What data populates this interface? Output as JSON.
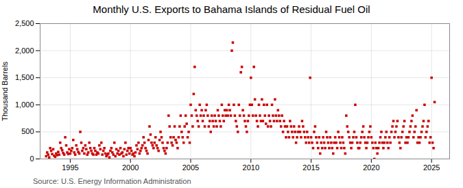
{
  "chart_data": {
    "type": "scatter",
    "title": "Monthly U.S. Exports to Bahama Islands of Residual Fuel Oil",
    "y_label": "Thousand Barrels",
    "annotations": [
      "Source: U.S. Energy Information Administration"
    ],
    "color": "#cc0000",
    "marker": "square",
    "grid": true,
    "xlim": [
      1992.5,
      2026.5
    ],
    "ylim": [
      0,
      2500
    ],
    "xticks": [
      1995,
      2000,
      2005,
      2010,
      2015,
      2020,
      2025
    ],
    "yticks": [
      0,
      500,
      {
        "value": 1000,
        "label": "1,000"
      },
      {
        "value": 1500,
        "label": "1,500"
      },
      {
        "value": 2000,
        "label": "2,000"
      },
      {
        "value": 2500,
        "label": "2,500"
      }
    ],
    "x": [
      1993.0,
      1993.083,
      1993.167,
      1993.25,
      1993.333,
      1993.417,
      1993.5,
      1993.583,
      1993.667,
      1993.75,
      1993.833,
      1993.917,
      1994.0,
      1994.083,
      1994.167,
      1994.25,
      1994.333,
      1994.417,
      1994.5,
      1994.583,
      1994.667,
      1994.75,
      1994.833,
      1994.917,
      1995.0,
      1995.083,
      1995.167,
      1995.25,
      1995.333,
      1995.417,
      1995.5,
      1995.583,
      1995.667,
      1995.75,
      1995.833,
      1995.917,
      1996.0,
      1996.083,
      1996.167,
      1996.25,
      1996.333,
      1996.417,
      1996.5,
      1996.583,
      1996.667,
      1996.75,
      1996.833,
      1996.917,
      1997.0,
      1997.083,
      1997.167,
      1997.25,
      1997.333,
      1997.417,
      1997.5,
      1997.583,
      1997.667,
      1997.75,
      1997.833,
      1997.917,
      1998.0,
      1998.083,
      1998.167,
      1998.25,
      1998.333,
      1998.417,
      1998.5,
      1998.583,
      1998.667,
      1998.75,
      1998.833,
      1998.917,
      1999.0,
      1999.083,
      1999.167,
      1999.25,
      1999.333,
      1999.417,
      1999.5,
      1999.583,
      1999.667,
      1999.75,
      1999.833,
      1999.917,
      2000.0,
      2000.083,
      2000.167,
      2000.25,
      2000.333,
      2000.417,
      2000.5,
      2000.583,
      2000.667,
      2000.75,
      2000.833,
      2000.917,
      2001.0,
      2001.083,
      2001.167,
      2001.25,
      2001.333,
      2001.417,
      2001.5,
      2001.583,
      2001.667,
      2001.75,
      2001.833,
      2001.917,
      2002.0,
      2002.083,
      2002.167,
      2002.25,
      2002.333,
      2002.417,
      2002.5,
      2002.583,
      2002.667,
      2002.75,
      2002.833,
      2002.917,
      2003.0,
      2003.083,
      2003.167,
      2003.25,
      2003.333,
      2003.417,
      2003.5,
      2003.583,
      2003.667,
      2003.75,
      2003.833,
      2003.917,
      2004.0,
      2004.083,
      2004.167,
      2004.25,
      2004.333,
      2004.417,
      2004.5,
      2004.583,
      2004.667,
      2004.75,
      2004.833,
      2004.917,
      2005.0,
      2005.083,
      2005.167,
      2005.25,
      2005.333,
      2005.417,
      2005.5,
      2005.583,
      2005.667,
      2005.75,
      2005.833,
      2005.917,
      2006.0,
      2006.083,
      2006.167,
      2006.25,
      2006.333,
      2006.417,
      2006.5,
      2006.583,
      2006.667,
      2006.75,
      2006.833,
      2006.917,
      2007.0,
      2007.083,
      2007.167,
      2007.25,
      2007.333,
      2007.417,
      2007.5,
      2007.583,
      2007.667,
      2007.75,
      2007.833,
      2007.917,
      2008.0,
      2008.083,
      2008.167,
      2008.25,
      2008.333,
      2008.417,
      2008.5,
      2008.583,
      2008.667,
      2008.75,
      2008.833,
      2008.917,
      2009.0,
      2009.083,
      2009.167,
      2009.25,
      2009.333,
      2009.417,
      2009.5,
      2009.583,
      2009.667,
      2009.75,
      2009.833,
      2009.917,
      2010.0,
      2010.083,
      2010.167,
      2010.25,
      2010.333,
      2010.417,
      2010.5,
      2010.583,
      2010.667,
      2010.75,
      2010.833,
      2010.917,
      2011.0,
      2011.083,
      2011.167,
      2011.25,
      2011.333,
      2011.417,
      2011.5,
      2011.583,
      2011.667,
      2011.75,
      2011.833,
      2011.917,
      2012.0,
      2012.083,
      2012.167,
      2012.25,
      2012.333,
      2012.417,
      2012.5,
      2012.583,
      2012.667,
      2012.75,
      2012.833,
      2012.917,
      2013.0,
      2013.083,
      2013.167,
      2013.25,
      2013.333,
      2013.417,
      2013.5,
      2013.583,
      2013.667,
      2013.75,
      2013.833,
      2013.917,
      2014.0,
      2014.083,
      2014.167,
      2014.25,
      2014.333,
      2014.417,
      2014.5,
      2014.583,
      2014.667,
      2014.75,
      2014.833,
      2014.917,
      2015.0,
      2015.083,
      2015.167,
      2015.25,
      2015.333,
      2015.417,
      2015.5,
      2015.583,
      2015.667,
      2015.75,
      2015.833,
      2015.917,
      2016.0,
      2016.083,
      2016.167,
      2016.25,
      2016.333,
      2016.417,
      2016.5,
      2016.583,
      2016.667,
      2016.75,
      2016.833,
      2016.917,
      2017.0,
      2017.083,
      2017.167,
      2017.25,
      2017.333,
      2017.417,
      2017.5,
      2017.583,
      2017.667,
      2017.75,
      2017.833,
      2017.917,
      2018.0,
      2018.083,
      2018.167,
      2018.25,
      2018.333,
      2018.417,
      2018.5,
      2018.583,
      2018.667,
      2018.75,
      2018.833,
      2018.917,
      2019.0,
      2019.083,
      2019.167,
      2019.25,
      2019.333,
      2019.417,
      2019.5,
      2019.583,
      2019.667,
      2019.75,
      2019.833,
      2019.917,
      2020.0,
      2020.083,
      2020.167,
      2020.25,
      2020.333,
      2020.417,
      2020.5,
      2020.583,
      2020.667,
      2020.75,
      2020.833,
      2020.917,
      2021.0,
      2021.083,
      2021.167,
      2021.25,
      2021.333,
      2021.417,
      2021.5,
      2021.583,
      2021.667,
      2021.75,
      2021.833,
      2021.917,
      2022.0,
      2022.083,
      2022.167,
      2022.25,
      2022.333,
      2022.417,
      2022.5,
      2022.583,
      2022.667,
      2022.75,
      2022.833,
      2022.917,
      2023.0,
      2023.083,
      2023.167,
      2023.25,
      2023.333,
      2023.417,
      2023.5,
      2023.583,
      2023.667,
      2023.75,
      2023.833,
      2023.917,
      2024.0,
      2024.083,
      2024.167,
      2024.25,
      2024.333,
      2024.417,
      2024.5,
      2024.583,
      2024.667,
      2024.75,
      2024.833,
      2024.917,
      2025.0,
      2025.083,
      2025.167,
      2025.25
    ],
    "values": [
      50,
      120,
      80,
      30,
      200,
      150,
      90,
      180,
      60,
      40,
      100,
      70,
      130,
      80,
      300,
      200,
      160,
      110,
      80,
      400,
      250,
      120,
      90,
      180,
      100,
      150,
      200,
      350,
      120,
      80,
      250,
      180,
      130,
      100,
      500,
      300,
      150,
      200,
      100,
      250,
      180,
      80,
      120,
      300,
      200,
      150,
      100,
      80,
      200,
      150,
      80,
      120,
      100,
      250,
      180,
      300,
      80,
      150,
      200,
      100,
      50,
      80,
      100,
      30,
      150,
      200,
      120,
      80,
      300,
      50,
      180,
      100,
      150,
      80,
      200,
      100,
      120,
      50,
      180,
      300,
      80,
      150,
      200,
      100,
      200,
      150,
      80,
      100,
      50,
      120,
      250,
      180,
      300,
      100,
      150,
      200,
      250,
      400,
      300,
      200,
      150,
      100,
      350,
      600,
      450,
      300,
      250,
      200,
      300,
      400,
      250,
      200,
      150,
      350,
      500,
      400,
      300,
      200,
      150,
      100,
      200,
      300,
      800,
      600,
      400,
      300,
      250,
      400,
      600,
      350,
      300,
      200,
      400,
      600,
      800,
      500,
      400,
      300,
      600,
      800,
      650,
      400,
      500,
      300,
      1000,
      800,
      600,
      1200,
      1700,
      900,
      800,
      700,
      600,
      1000,
      800,
      900,
      700,
      800,
      600,
      900,
      1000,
      800,
      600,
      700,
      500,
      800,
      700,
      600,
      800,
      700,
      600,
      900,
      800,
      700,
      600,
      1000,
      800,
      700,
      900,
      800,
      900,
      800,
      1000,
      900,
      800,
      2000,
      2150,
      1000,
      800,
      700,
      600,
      500,
      1000,
      800,
      1600,
      1700,
      900,
      800,
      700,
      600,
      500,
      700,
      800,
      1000,
      1500,
      1000,
      800,
      1700,
      1100,
      800,
      700,
      600,
      1000,
      800,
      700,
      1100,
      700,
      1000,
      800,
      650,
      1000,
      600,
      800,
      700,
      600,
      1000,
      800,
      700,
      1100,
      800,
      700,
      900,
      800,
      700,
      600,
      800,
      500,
      700,
      600,
      400,
      600,
      500,
      400,
      700,
      600,
      500,
      400,
      600,
      500,
      300,
      400,
      500,
      600,
      500,
      400,
      700,
      600,
      500,
      400,
      300,
      500,
      400,
      300,
      1500,
      400,
      300,
      200,
      500,
      600,
      400,
      300,
      200,
      400,
      100,
      300,
      200,
      400,
      300,
      200,
      500,
      400,
      300,
      200,
      400,
      300,
      200,
      100,
      300,
      400,
      300,
      200,
      500,
      400,
      300,
      200,
      400,
      300,
      200,
      100,
      800,
      600,
      500,
      400,
      300,
      200,
      300,
      400,
      500,
      1000,
      400,
      300,
      200,
      200,
      300,
      400,
      500,
      600,
      400,
      300,
      200,
      300,
      400,
      500,
      600,
      400,
      300,
      200,
      0,
      300,
      200,
      100,
      200,
      300,
      400,
      500,
      300,
      200,
      300,
      400,
      500,
      300,
      200,
      400,
      300,
      500,
      600,
      700,
      400,
      500,
      600,
      700,
      400,
      300,
      200,
      400,
      500,
      600,
      700,
      300,
      400,
      300,
      400,
      500,
      600,
      700,
      800,
      400,
      500,
      600,
      900,
      300,
      400,
      300,
      400,
      500,
      600,
      700,
      1000,
      400,
      500,
      600,
      700,
      300,
      400,
      1500,
      300,
      200,
      1050
    ]
  }
}
